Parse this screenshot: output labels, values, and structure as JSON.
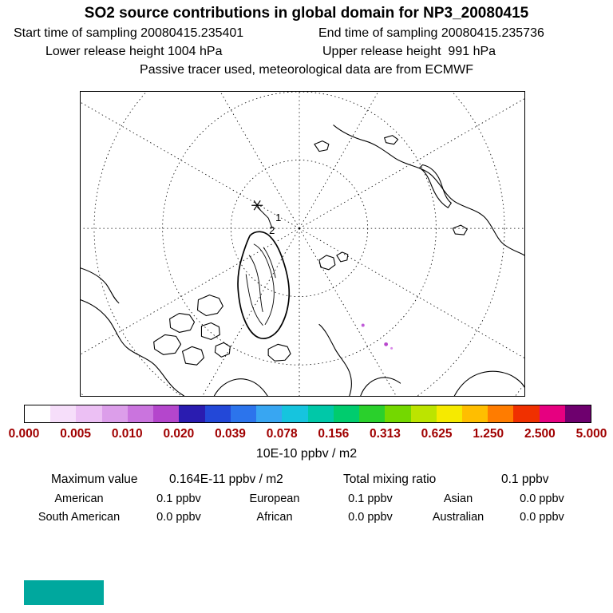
{
  "header": {
    "title": "SO2 source contributions in global domain for NP3_20080415",
    "start_time": "Start time of sampling 20080415.235401",
    "end_time": "End time of sampling 20080415.235736",
    "lower_release": "Lower release height 1004 hPa",
    "upper_release": "Upper release height  991 hPa",
    "tracer_info": "Passive tracer used, meteorological data are from ECMWF"
  },
  "map": {
    "projection": "north polar stereographic",
    "release_markers": [
      "1",
      "2"
    ]
  },
  "colorbar": {
    "ticks": [
      "0.000",
      "0.005",
      "0.010",
      "0.020",
      "0.039",
      "0.078",
      "0.156",
      "0.313",
      "0.625",
      "1.250",
      "2.500",
      "5.000"
    ],
    "units": "10E-10 ppbv / m2",
    "tick_color": "#a00000",
    "colors": [
      "#ffffff",
      "#f6defa",
      "#ecc0f4",
      "#dc9eea",
      "#ca74de",
      "#b446cc",
      "#2a1cb0",
      "#2348d8",
      "#2c74ec",
      "#38a6f2",
      "#16c4de",
      "#00c8a8",
      "#00cc6e",
      "#2ad02c",
      "#74d800",
      "#bce400",
      "#f6ea00",
      "#ffbe00",
      "#ff7c00",
      "#f03000",
      "#e60080",
      "#6e006e"
    ]
  },
  "stats": {
    "max_label": "Maximum value",
    "max_value": "0.164E-11 ppbv / m2",
    "total_label": "Total mixing ratio",
    "total_value": "0.1 ppbv",
    "regions": [
      {
        "name": "American",
        "value": "0.1 ppbv"
      },
      {
        "name": "European",
        "value": "0.1 ppbv"
      },
      {
        "name": "Asian",
        "value": "0.0 ppbv"
      },
      {
        "name": "South American",
        "value": "0.0 ppbv"
      },
      {
        "name": "African",
        "value": "0.0 ppbv"
      },
      {
        "name": "Australian",
        "value": "0.0 ppbv"
      }
    ]
  },
  "footer": {
    "swatch_color": "#00a89e"
  },
  "chart_data": {
    "type": "heatmap",
    "title": "SO2 source contributions in global domain for NP3_20080415",
    "projection": "north polar stereographic map",
    "colorbar_tick_values": [
      0.0,
      0.005,
      0.01,
      0.02,
      0.039,
      0.078,
      0.156,
      0.313,
      0.625,
      1.25,
      2.5,
      5.0
    ],
    "units": "10E-10 ppbv / m2",
    "maximum_value": "0.164E-11 ppbv / m2",
    "total_mixing_ratio": "0.1 ppbv",
    "release_points": [
      "1",
      "2"
    ],
    "source_contributions": [
      {
        "region": "American",
        "value_ppbv": 0.1
      },
      {
        "region": "European",
        "value_ppbv": 0.1
      },
      {
        "region": "Asian",
        "value_ppbv": 0.0
      },
      {
        "region": "South American",
        "value_ppbv": 0.0
      },
      {
        "region": "African",
        "value_ppbv": 0.0
      },
      {
        "region": "Australian",
        "value_ppbv": 0.0
      }
    ]
  }
}
